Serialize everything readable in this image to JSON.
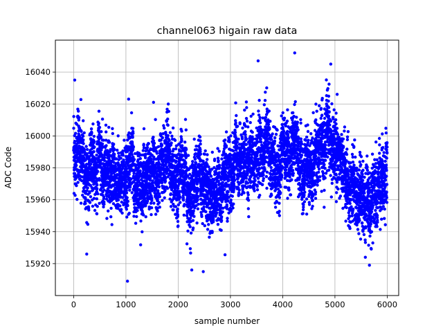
{
  "chart_data": {
    "type": "scatter",
    "title": "channel063 higain raw data",
    "xlabel": "sample number",
    "ylabel": "ADC Code",
    "xlim": [
      -350,
      6220
    ],
    "ylim": [
      15900,
      16060
    ],
    "x_ticks": [
      0,
      1000,
      2000,
      3000,
      4000,
      5000,
      6000
    ],
    "y_ticks": [
      15920,
      15940,
      15960,
      15980,
      16000,
      16020,
      16040
    ],
    "grid": true,
    "marker_color": "#0000ff",
    "n_samples": 6000,
    "trend": [
      [
        0,
        15994
      ],
      [
        100,
        15988
      ],
      [
        300,
        15980
      ],
      [
        500,
        15975
      ],
      [
        700,
        15976
      ],
      [
        900,
        15970
      ],
      [
        1100,
        15976
      ],
      [
        1300,
        15978
      ],
      [
        1450,
        15963
      ],
      [
        1600,
        15980
      ],
      [
        1800,
        15986
      ],
      [
        2000,
        15980
      ],
      [
        2150,
        15965
      ],
      [
        2250,
        15958
      ],
      [
        2400,
        15978
      ],
      [
        2600,
        15968
      ],
      [
        2800,
        15962
      ],
      [
        3000,
        15978
      ],
      [
        3200,
        15985
      ],
      [
        3400,
        15988
      ],
      [
        3600,
        15993
      ],
      [
        3800,
        15990
      ],
      [
        3950,
        15975
      ],
      [
        4100,
        15992
      ],
      [
        4250,
        16003
      ],
      [
        4400,
        15980
      ],
      [
        4600,
        15990
      ],
      [
        4800,
        15992
      ],
      [
        5000,
        15986
      ],
      [
        5100,
        15975
      ],
      [
        5300,
        15970
      ],
      [
        5500,
        15962
      ],
      [
        5700,
        15958
      ],
      [
        5850,
        15968
      ],
      [
        5950,
        15975
      ]
    ],
    "notable_points": [
      [
        1030,
        15909
      ],
      [
        2480,
        15915
      ],
      [
        4230,
        16052
      ],
      [
        3530,
        16047
      ],
      [
        4920,
        16045
      ],
      [
        20,
        16035
      ],
      [
        2260,
        15916
      ],
      [
        5660,
        15919
      ],
      [
        250,
        15926
      ]
    ]
  }
}
